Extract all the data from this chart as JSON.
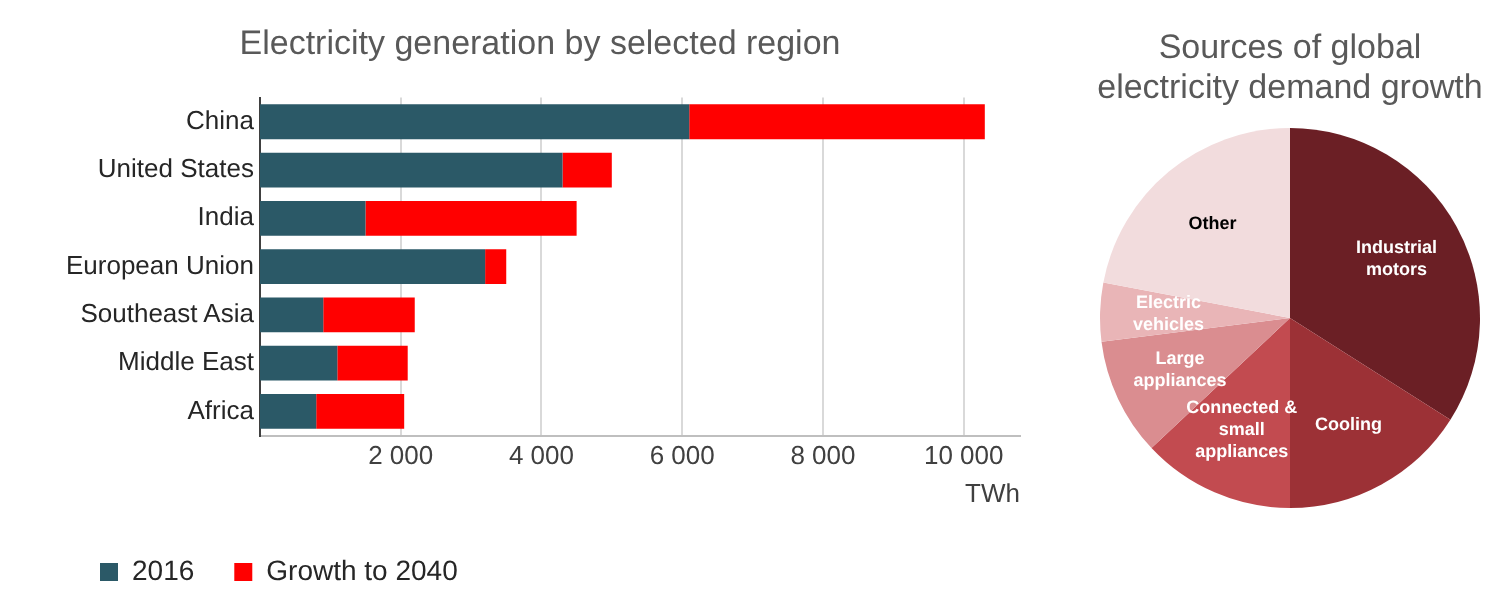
{
  "chart_data": [
    {
      "type": "bar",
      "title": "Electricity generation by selected region",
      "orientation": "horizontal",
      "stacked": true,
      "categories": [
        "China",
        "United States",
        "India",
        "European Union",
        "Southeast Asia",
        "Middle East",
        "Africa"
      ],
      "series": [
        {
          "name": "2016",
          "color": "#2b5967",
          "values": [
            6100,
            4300,
            1500,
            3200,
            900,
            1100,
            800
          ]
        },
        {
          "name": "Growth to 2040",
          "color": "#ff0000",
          "values": [
            4200,
            700,
            3000,
            300,
            1300,
            1000,
            1250
          ]
        }
      ],
      "xlabel": "TWh",
      "xlim": [
        0,
        10800
      ],
      "xticks": [
        {
          "value": 2000,
          "label": "2 000"
        },
        {
          "value": 4000,
          "label": "4 000"
        },
        {
          "value": 6000,
          "label": "6 000"
        },
        {
          "value": 8000,
          "label": "8 000"
        },
        {
          "value": 10000,
          "label": "10 000"
        }
      ],
      "grid": "x",
      "legend": "bottom"
    },
    {
      "type": "pie",
      "title": "Sources of global electricity demand growth",
      "categories": [
        "Industrial motors",
        "Cooling",
        "Connected & small appliances",
        "Large appliances",
        "Electric vehicles",
        "Other"
      ],
      "values": [
        34,
        16,
        13,
        10,
        5,
        22
      ],
      "colors": [
        "#6b1f25",
        "#9c3136",
        "#c24b50",
        "#da8d90",
        "#e9b5b7",
        "#f2dcdd"
      ],
      "legend": false
    }
  ]
}
